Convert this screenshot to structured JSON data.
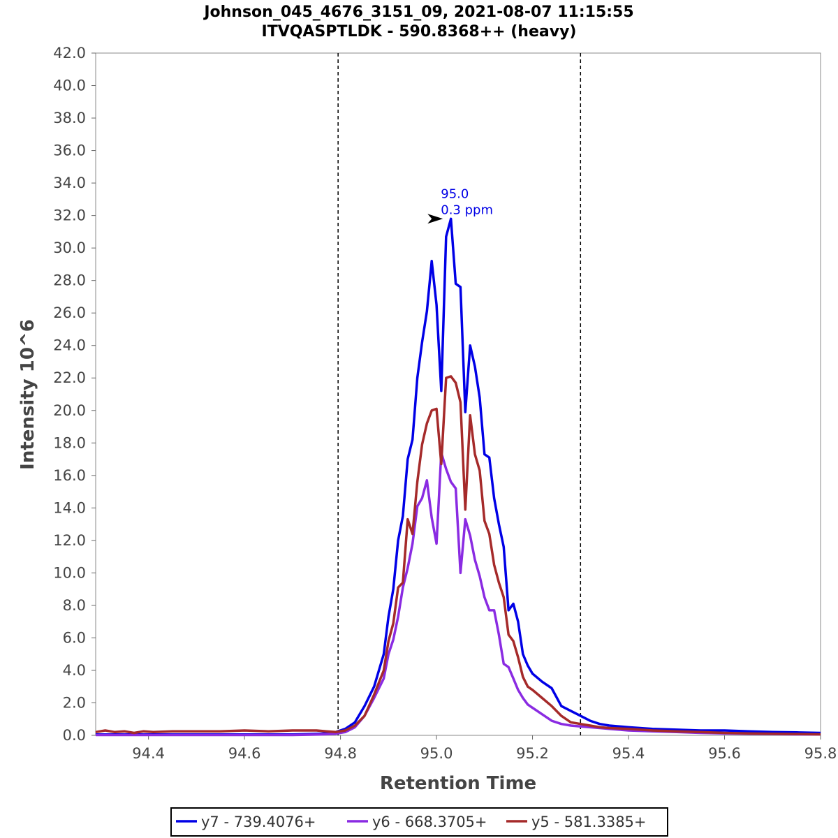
{
  "chart_data": {
    "type": "line",
    "title": "Johnson_045_4676_3151_09, 2021-08-07 11:15:55",
    "subtitle": "ITVQASPTLDK - 590.8368++ (heavy)",
    "xlabel": "Retention Time",
    "ylabel": "Intensity 10^6",
    "xlim": [
      94.29,
      95.8
    ],
    "ylim": [
      0,
      42
    ],
    "x_ticks": [
      "94.4",
      "94.6",
      "94.8",
      "95.0",
      "95.2",
      "95.4",
      "95.6",
      "95.8"
    ],
    "y_ticks": [
      "0.0",
      "2.0",
      "4.0",
      "6.0",
      "8.0",
      "10.0",
      "12.0",
      "14.0",
      "16.0",
      "18.0",
      "20.0",
      "22.0",
      "24.0",
      "26.0",
      "28.0",
      "30.0",
      "32.0",
      "34.0",
      "36.0",
      "38.0",
      "40.0",
      "42.0"
    ],
    "integration_boundaries": [
      94.795,
      95.3
    ],
    "legend_position": "bottom",
    "annotation": {
      "x": 95.025,
      "y": 31.8,
      "line1": "95.0",
      "line2": "0.3 ppm",
      "color": "#0000e6"
    },
    "series": [
      {
        "name": "y7 - 739.4076+",
        "color": "#0000e6",
        "x": [
          94.29,
          94.4,
          94.5,
          94.6,
          94.7,
          94.76,
          94.79,
          94.81,
          94.83,
          94.85,
          94.87,
          94.89,
          94.9,
          94.91,
          94.92,
          94.93,
          94.94,
          94.95,
          94.96,
          94.97,
          94.98,
          94.99,
          95.0,
          95.01,
          95.02,
          95.03,
          95.04,
          95.05,
          95.06,
          95.07,
          95.08,
          95.09,
          95.1,
          95.11,
          95.12,
          95.13,
          95.14,
          95.15,
          95.16,
          95.17,
          95.18,
          95.19,
          95.2,
          95.22,
          95.24,
          95.26,
          95.28,
          95.3,
          95.32,
          95.34,
          95.36,
          95.4,
          95.45,
          95.5,
          95.55,
          95.6,
          95.65,
          95.7,
          95.75,
          95.8
        ],
        "values": [
          0.05,
          0.05,
          0.05,
          0.05,
          0.05,
          0.1,
          0.2,
          0.4,
          0.8,
          1.8,
          3.0,
          5.0,
          7.3,
          9.0,
          12.0,
          13.5,
          17.0,
          18.2,
          22.0,
          24.2,
          26.1,
          29.2,
          26.5,
          21.2,
          30.7,
          31.8,
          27.8,
          27.6,
          19.9,
          24.0,
          22.7,
          20.8,
          17.3,
          17.1,
          14.6,
          13.0,
          11.6,
          7.7,
          8.1,
          7.0,
          5.0,
          4.3,
          3.8,
          3.3,
          2.9,
          1.8,
          1.5,
          1.2,
          0.9,
          0.7,
          0.6,
          0.5,
          0.4,
          0.35,
          0.3,
          0.3,
          0.25,
          0.2,
          0.18,
          0.15
        ]
      },
      {
        "name": "y6 - 668.3705+",
        "color": "#8a2be2",
        "x": [
          94.29,
          94.4,
          94.5,
          94.6,
          94.7,
          94.76,
          94.79,
          94.81,
          94.83,
          94.85,
          94.87,
          94.89,
          94.9,
          94.91,
          94.92,
          94.93,
          94.94,
          94.95,
          94.96,
          94.97,
          94.98,
          94.99,
          95.0,
          95.01,
          95.02,
          95.03,
          95.04,
          95.05,
          95.06,
          95.07,
          95.08,
          95.09,
          95.1,
          95.11,
          95.12,
          95.13,
          95.14,
          95.15,
          95.16,
          95.17,
          95.18,
          95.19,
          95.2,
          95.22,
          95.24,
          95.26,
          95.28,
          95.3,
          95.32,
          95.34,
          95.36,
          95.4,
          95.45,
          95.5,
          95.55,
          95.6,
          95.65,
          95.7,
          95.75,
          95.8
        ],
        "values": [
          0.02,
          0.02,
          0.02,
          0.02,
          0.02,
          0.05,
          0.1,
          0.2,
          0.5,
          1.2,
          2.3,
          3.5,
          5.0,
          5.9,
          7.3,
          9.1,
          10.3,
          11.8,
          14.1,
          14.6,
          15.7,
          13.4,
          11.8,
          17.4,
          16.4,
          15.6,
          15.2,
          10.0,
          13.3,
          12.3,
          10.8,
          9.8,
          8.5,
          7.7,
          7.7,
          6.2,
          4.4,
          4.2,
          3.5,
          2.8,
          2.3,
          1.9,
          1.7,
          1.3,
          0.9,
          0.7,
          0.6,
          0.55,
          0.5,
          0.45,
          0.4,
          0.3,
          0.25,
          0.2,
          0.15,
          0.12,
          0.1,
          0.08,
          0.06,
          0.05
        ]
      },
      {
        "name": "y5 - 581.3385+",
        "color": "#a52a2a",
        "x": [
          94.29,
          94.31,
          94.33,
          94.35,
          94.37,
          94.39,
          94.41,
          94.45,
          94.5,
          94.55,
          94.6,
          94.65,
          94.7,
          94.75,
          94.77,
          94.79,
          94.81,
          94.83,
          94.85,
          94.87,
          94.89,
          94.9,
          94.91,
          94.92,
          94.93,
          94.94,
          94.95,
          94.96,
          94.97,
          94.98,
          94.99,
          95.0,
          95.01,
          95.02,
          95.03,
          95.04,
          95.05,
          95.06,
          95.07,
          95.08,
          95.09,
          95.1,
          95.11,
          95.12,
          95.13,
          95.14,
          95.15,
          95.16,
          95.17,
          95.18,
          95.19,
          95.2,
          95.22,
          95.24,
          95.26,
          95.28,
          95.3,
          95.32,
          95.34,
          95.36,
          95.4,
          95.45,
          95.5,
          95.55,
          95.6,
          95.65,
          95.7,
          95.75,
          95.8
        ],
        "values": [
          0.2,
          0.3,
          0.2,
          0.25,
          0.15,
          0.25,
          0.2,
          0.25,
          0.25,
          0.25,
          0.3,
          0.25,
          0.3,
          0.3,
          0.25,
          0.2,
          0.3,
          0.6,
          1.2,
          2.5,
          4.0,
          5.8,
          6.9,
          9.1,
          9.4,
          13.3,
          12.4,
          15.6,
          17.9,
          19.2,
          20.0,
          20.1,
          16.7,
          22.0,
          22.1,
          21.7,
          20.5,
          13.9,
          19.7,
          17.3,
          16.3,
          13.2,
          12.4,
          10.5,
          9.4,
          8.5,
          6.2,
          5.8,
          4.8,
          3.6,
          3.0,
          2.8,
          2.3,
          1.8,
          1.2,
          0.8,
          0.7,
          0.6,
          0.5,
          0.45,
          0.4,
          0.3,
          0.25,
          0.2,
          0.15,
          0.12,
          0.1,
          0.08,
          0.06
        ]
      }
    ]
  }
}
